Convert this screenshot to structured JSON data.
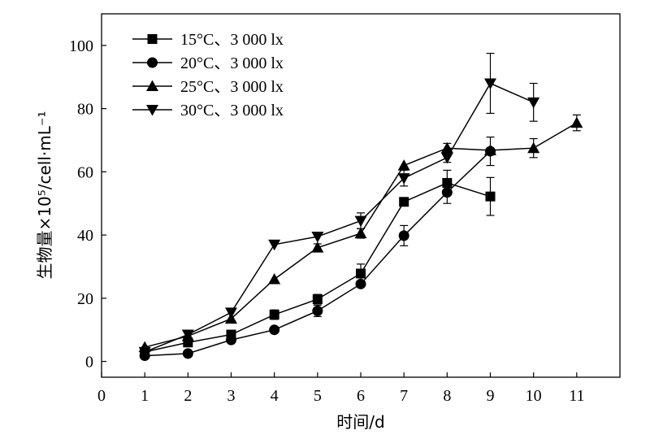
{
  "chart_data": {
    "type": "line",
    "xlabel": "时间/d",
    "ylabel": "生物量×10⁵/cell·mL⁻¹",
    "xlim": [
      0,
      12
    ],
    "ylim": [
      -5,
      110
    ],
    "xticks": [
      0,
      1,
      2,
      3,
      4,
      5,
      6,
      7,
      8,
      9,
      10,
      11
    ],
    "yticks": [
      0,
      20,
      40,
      60,
      80,
      100
    ],
    "grid": false,
    "legend_position": "top-left",
    "series": [
      {
        "name": "15°C、3 000 lx",
        "marker": "square",
        "x": [
          1,
          2,
          3,
          4,
          5,
          6,
          7,
          8,
          9
        ],
        "y": [
          3,
          6,
          8.5,
          14.8,
          19.7,
          27.8,
          50.5,
          56.5,
          52.2
        ],
        "err": [
          0,
          0,
          0,
          1.5,
          1.5,
          3,
          0,
          4,
          6
        ]
      },
      {
        "name": "20°C、3 000 lx",
        "marker": "circle",
        "x": [
          1,
          2,
          3,
          4,
          5,
          6,
          7,
          8,
          9
        ],
        "y": [
          1.8,
          2.5,
          6.8,
          10,
          16,
          24.5,
          39.8,
          53.5,
          66.5
        ],
        "err": [
          0,
          0,
          0,
          0,
          1.8,
          0,
          3.2,
          3.5,
          4.5
        ]
      },
      {
        "name": "25°C、3 000 lx",
        "marker": "triangle-up",
        "x": [
          1,
          2,
          3,
          4,
          5,
          6,
          7,
          8,
          9,
          10,
          11
        ],
        "y": [
          4.5,
          8,
          13.5,
          26,
          36,
          40.5,
          62,
          67.5,
          66.8,
          67.5,
          75.5
        ],
        "err": [
          0,
          0,
          0,
          0,
          1.2,
          1.5,
          0,
          1.5,
          0,
          3,
          2.5
        ]
      },
      {
        "name": "30°C、3 000 lx",
        "marker": "triangle-down",
        "x": [
          1,
          2,
          3,
          4,
          5,
          6,
          7,
          8,
          9,
          10
        ],
        "y": [
          3,
          8.5,
          15.5,
          37,
          39.5,
          44.5,
          58,
          64.5,
          88,
          82
        ],
        "err": [
          0,
          0,
          0,
          0,
          0,
          2.5,
          2.5,
          1.5,
          9.5,
          6
        ]
      }
    ]
  }
}
